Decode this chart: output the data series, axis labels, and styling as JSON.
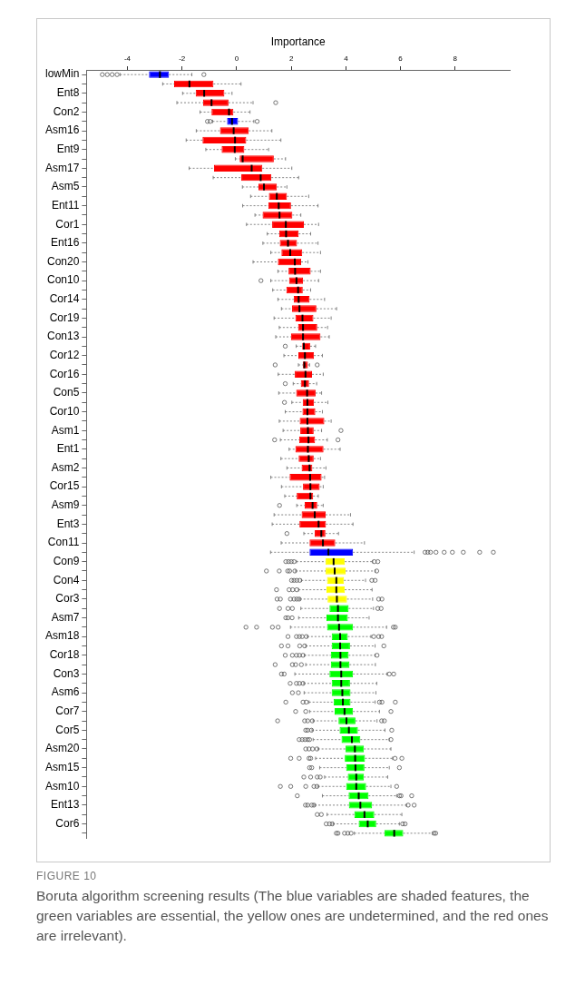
{
  "chart_data": {
    "type": "box",
    "orientation": "horizontal",
    "xlabel": "Importance",
    "xlim": [
      -5.5,
      10
    ],
    "xticks": [
      -4,
      -2,
      0,
      2,
      4,
      6,
      8
    ],
    "grid": false,
    "legend": false,
    "categories": [
      "lowMin",
      null,
      "Ent8",
      null,
      "Con2",
      null,
      "Asm16",
      null,
      "Ent9",
      null,
      "Asm17",
      null,
      "Asm5",
      null,
      "Ent11",
      null,
      "Cor1",
      null,
      "Ent16",
      null,
      "Con20",
      null,
      "Con10",
      null,
      "Cor14",
      null,
      "Cor19",
      null,
      "Con13",
      null,
      "Cor12",
      null,
      "Cor16",
      null,
      "Con5",
      null,
      "Cor10",
      null,
      "Asm1",
      null,
      "Ent1",
      null,
      "Asm2",
      null,
      "Cor15",
      null,
      "Asm9",
      null,
      "Ent3",
      null,
      "Con11",
      null,
      "Con9",
      null,
      "Con4",
      null,
      "Cor3",
      null,
      "Asm7",
      null,
      "Asm18",
      null,
      "Cor18",
      null,
      "Con3",
      null,
      "Asm6",
      null,
      "Cor7",
      null,
      "Cor5",
      null,
      "Asm20",
      null,
      "Asm15",
      null,
      "Asm10",
      null,
      "Ent13",
      null,
      "Cor6",
      null
    ],
    "colors": [
      "#0000ff",
      "#ff0000",
      "#ff0000",
      "#ff0000",
      "#ff0000",
      "#0000ff",
      "#ff0000",
      "#ff0000",
      "#ff0000",
      "#ff0000",
      "#ff0000",
      "#ff0000",
      "#ff0000",
      "#ff0000",
      "#ff0000",
      "#ff0000",
      "#ff0000",
      "#ff0000",
      "#ff0000",
      "#ff0000",
      "#ff0000",
      "#ff0000",
      "#ff0000",
      "#ff0000",
      "#ff0000",
      "#ff0000",
      "#ff0000",
      "#ff0000",
      "#ff0000",
      "#ff0000",
      "#ff0000",
      "#ff0000",
      "#ff0000",
      "#ff0000",
      "#ff0000",
      "#ff0000",
      "#ff0000",
      "#ff0000",
      "#ff0000",
      "#ff0000",
      "#ff0000",
      "#ff0000",
      "#ff0000",
      "#ff0000",
      "#ff0000",
      "#ff0000",
      "#ff0000",
      "#ff0000",
      "#ff0000",
      "#ff0000",
      "#ff0000",
      "#0000ff",
      "#ffff00",
      "#ffff00",
      "#ffff00",
      "#ffff00",
      "#ffff00",
      "#00ff00",
      "#00ff00",
      "#00ff00",
      "#00ff00",
      "#00ff00",
      "#00ff00",
      "#00ff00",
      "#00ff00",
      "#00ff00",
      "#00ff00",
      "#00ff00",
      "#00ff00",
      "#00ff00",
      "#00ff00",
      "#00ff00",
      "#00ff00",
      "#00ff00",
      "#00ff00",
      "#00ff00",
      "#00ff00",
      "#00ff00",
      "#00ff00",
      "#00ff00",
      "#00ff00",
      "#00ff00"
    ],
    "boxes": [
      {
        "low": -4.27,
        "q1": -3.21,
        "median": -2.81,
        "q3": -2.48,
        "high": -1.64,
        "outliers": [
          -4.92,
          -4.74,
          -4.56,
          -4.38,
          -1.2
        ]
      },
      {
        "low": -2.71,
        "q1": -2.29,
        "median": -1.73,
        "q3": -0.85,
        "high": 0.16
      },
      {
        "low": -1.98,
        "q1": -1.5,
        "median": -1.19,
        "q3": -0.45,
        "high": -0.17
      },
      {
        "low": -2.19,
        "q1": -1.23,
        "median": -0.92,
        "q3": -0.3,
        "high": 0.6,
        "outliers": [
          1.43
        ]
      },
      {
        "low": -1.34,
        "q1": -0.92,
        "median": -0.28,
        "q3": -0.12,
        "high": 0.49
      },
      {
        "low": -0.88,
        "q1": -0.35,
        "median": -0.17,
        "q3": 0.05,
        "high": 0.63,
        "outliers": [
          -1.07,
          -0.97,
          0.75
        ]
      },
      {
        "low": -1.48,
        "q1": -0.61,
        "median": -0.11,
        "q3": 0.44,
        "high": 1.29
      },
      {
        "low": -1.85,
        "q1": -1.25,
        "median": -0.06,
        "q3": 0.35,
        "high": 1.62
      },
      {
        "low": -1.13,
        "q1": -0.55,
        "median": -0.07,
        "q3": 0.28,
        "high": 1.17
      },
      {
        "low": -0.05,
        "q1": 0.11,
        "median": 0.22,
        "q3": 1.36,
        "high": 1.79
      },
      {
        "low": -1.74,
        "q1": -0.83,
        "median": 0.55,
        "q3": 0.94,
        "high": 2.02
      },
      {
        "low": -0.86,
        "q1": 0.17,
        "median": 0.88,
        "q3": 1.27,
        "high": 2.27
      },
      {
        "low": 0.21,
        "q1": 0.8,
        "median": 1.0,
        "q3": 1.47,
        "high": 1.84
      },
      {
        "low": 0.51,
        "q1": 1.18,
        "median": 1.47,
        "q3": 1.84,
        "high": 2.64
      },
      {
        "low": 0.22,
        "q1": 1.16,
        "median": 1.54,
        "q3": 1.99,
        "high": 2.98
      },
      {
        "low": 0.67,
        "q1": 0.95,
        "median": 1.57,
        "q3": 2.04,
        "high": 2.35
      },
      {
        "low": 0.36,
        "q1": 1.3,
        "median": 1.8,
        "q3": 2.46,
        "high": 3.0
      },
      {
        "low": 1.12,
        "q1": 1.56,
        "median": 1.81,
        "q3": 2.27,
        "high": 2.71
      },
      {
        "low": 0.96,
        "q1": 1.58,
        "median": 1.88,
        "q3": 2.21,
        "high": 2.98
      },
      {
        "low": 1.25,
        "q1": 1.64,
        "median": 1.96,
        "q3": 2.4,
        "high": 3.07
      },
      {
        "low": 0.6,
        "q1": 1.51,
        "median": 2.13,
        "q3": 2.36,
        "high": 2.61
      },
      {
        "low": 1.51,
        "q1": 1.9,
        "median": 2.14,
        "q3": 2.71,
        "high": 3.07
      },
      {
        "low": 1.25,
        "q1": 1.92,
        "median": 2.19,
        "q3": 2.43,
        "high": 3.0,
        "outliers": [
          0.89
        ]
      },
      {
        "low": 1.32,
        "q1": 1.82,
        "median": 2.25,
        "q3": 2.42,
        "high": 2.71
      },
      {
        "low": 1.51,
        "q1": 2.09,
        "median": 2.27,
        "q3": 2.67,
        "high": 3.22
      },
      {
        "low": 1.64,
        "q1": 2.03,
        "median": 2.3,
        "q3": 2.92,
        "high": 3.66
      },
      {
        "low": 1.37,
        "q1": 2.15,
        "median": 2.41,
        "q3": 2.81,
        "high": 3.46
      },
      {
        "low": 1.56,
        "q1": 2.25,
        "median": 2.43,
        "q3": 2.95,
        "high": 3.33
      },
      {
        "low": 1.43,
        "q1": 1.99,
        "median": 2.43,
        "q3": 3.07,
        "high": 3.39
      },
      {
        "low": 2.18,
        "q1": 2.4,
        "median": 2.46,
        "q3": 2.69,
        "high": 2.89,
        "outliers": [
          1.78
        ]
      },
      {
        "low": 1.73,
        "q1": 2.26,
        "median": 2.5,
        "q3": 2.83,
        "high": 3.14
      },
      {
        "low": 2.26,
        "q1": 2.42,
        "median": 2.48,
        "q3": 2.61,
        "high": 2.67,
        "outliers": [
          1.41,
          2.95
        ]
      },
      {
        "low": 1.52,
        "q1": 2.13,
        "median": 2.52,
        "q3": 2.76,
        "high": 3.17
      },
      {
        "low": 2.07,
        "q1": 2.35,
        "median": 2.5,
        "q3": 2.65,
        "high": 2.93,
        "outliers": [
          1.78
        ]
      },
      {
        "low": 1.54,
        "q1": 2.18,
        "median": 2.58,
        "q3": 2.89,
        "high": 3.11
      },
      {
        "low": 2.02,
        "q1": 2.42,
        "median": 2.59,
        "q3": 2.83,
        "high": 3.34,
        "outliers": [
          1.75
        ]
      },
      {
        "low": 1.78,
        "q1": 2.41,
        "median": 2.59,
        "q3": 2.88,
        "high": 3.14
      },
      {
        "low": 1.56,
        "q1": 2.31,
        "median": 2.59,
        "q3": 3.21,
        "high": 3.46
      },
      {
        "low": 1.7,
        "q1": 2.33,
        "median": 2.61,
        "q3": 2.82,
        "high": 3.11,
        "outliers": [
          3.82
        ]
      },
      {
        "low": 1.6,
        "q1": 2.29,
        "median": 2.63,
        "q3": 2.87,
        "high": 3.32,
        "outliers": [
          1.39,
          3.71
        ]
      },
      {
        "low": 1.92,
        "q1": 2.15,
        "median": 2.61,
        "q3": 3.18,
        "high": 3.79
      },
      {
        "low": 1.62,
        "q1": 2.27,
        "median": 2.64,
        "q3": 2.82,
        "high": 3.07
      },
      {
        "low": 1.84,
        "q1": 2.38,
        "median": 2.67,
        "q3": 2.77,
        "high": 3.27
      },
      {
        "low": 1.25,
        "q1": 1.94,
        "median": 2.69,
        "q3": 3.11,
        "high": 3.22
      },
      {
        "low": 1.64,
        "q1": 2.43,
        "median": 2.7,
        "q3": 3.04,
        "high": 3.17
      },
      {
        "low": 1.76,
        "q1": 2.2,
        "median": 2.7,
        "q3": 2.8,
        "high": 2.99
      },
      {
        "low": 2.2,
        "q1": 2.49,
        "median": 2.78,
        "q3": 2.95,
        "high": 3.17,
        "outliers": [
          1.57
        ]
      },
      {
        "low": 1.37,
        "q1": 2.38,
        "median": 2.86,
        "q3": 3.26,
        "high": 4.17
      },
      {
        "low": 1.3,
        "q1": 2.3,
        "median": 3.0,
        "q3": 3.27,
        "high": 4.26
      },
      {
        "low": 2.46,
        "q1": 2.86,
        "median": 3.1,
        "q3": 3.25,
        "high": 3.73,
        "outliers": [
          1.84
        ]
      },
      {
        "low": 1.63,
        "q1": 2.67,
        "median": 3.16,
        "q3": 3.61,
        "high": 4.68
      },
      {
        "low": 1.24,
        "q1": 2.67,
        "median": 3.36,
        "q3": 4.26,
        "high": 6.5,
        "outliers": [
          6.9,
          7.0,
          7.1,
          7.3,
          7.6,
          7.9,
          8.3,
          8.9,
          9.4
        ]
      },
      {
        "low": 2.19,
        "q1": 3.26,
        "median": 3.55,
        "q3": 3.96,
        "high": 4.98,
        "outliers": [
          1.8,
          1.9,
          2.0,
          2.1,
          5.04,
          5.17
        ]
      },
      {
        "low": 2.16,
        "q1": 3.26,
        "median": 3.59,
        "q3": 3.99,
        "high": 5.08,
        "outliers": [
          1.09,
          1.56,
          1.87,
          1.94,
          2.13,
          5.13
        ]
      },
      {
        "low": 2.37,
        "q1": 3.31,
        "median": 3.65,
        "q3": 3.93,
        "high": 4.72,
        "outliers": [
          2.01,
          2.1,
          2.2,
          2.31,
          4.95,
          5.07
        ]
      },
      {
        "low": 2.27,
        "q1": 3.29,
        "median": 3.65,
        "q3": 3.96,
        "high": 4.96,
        "outliers": [
          1.46,
          1.92,
          2.05,
          2.2
        ]
      },
      {
        "low": 2.32,
        "q1": 3.33,
        "median": 3.67,
        "q3": 4.04,
        "high": 4.98,
        "outliers": [
          1.48,
          1.6,
          1.97,
          2.1,
          2.2,
          2.29,
          5.2,
          5.32
        ]
      },
      {
        "low": 2.35,
        "q1": 3.4,
        "median": 3.71,
        "q3": 4.1,
        "high": 5.01,
        "outliers": [
          1.57,
          1.88,
          2.04,
          5.17,
          5.29
        ]
      },
      {
        "low": 2.27,
        "q1": 3.29,
        "median": 3.71,
        "q3": 4.07,
        "high": 4.85,
        "outliers": [
          1.8,
          1.88,
          2.03
        ]
      },
      {
        "low": 1.97,
        "q1": 3.31,
        "median": 3.75,
        "q3": 4.26,
        "high": 5.49,
        "outliers": [
          0.34,
          0.73,
          1.31,
          1.52,
          5.74,
          5.81
        ]
      },
      {
        "low": 2.59,
        "q1": 3.48,
        "median": 3.79,
        "q3": 4.07,
        "high": 4.92,
        "outliers": [
          1.88,
          2.19,
          2.3,
          2.4,
          2.55,
          5.02,
          5.2,
          5.31
        ]
      },
      {
        "low": 2.53,
        "q1": 3.48,
        "median": 3.79,
        "q3": 4.15,
        "high": 5.07,
        "outliers": [
          1.64,
          1.88,
          2.31,
          2.49,
          5.39
        ]
      },
      {
        "low": 2.48,
        "q1": 3.45,
        "median": 3.8,
        "q3": 4.1,
        "high": 5.07,
        "outliers": [
          1.78,
          2.04,
          2.19,
          2.3,
          2.43,
          5.14
        ]
      },
      {
        "low": 2.53,
        "q1": 3.45,
        "median": 3.8,
        "q3": 4.13,
        "high": 5.08,
        "outliers": [
          1.41,
          2.04,
          2.16,
          2.37
        ]
      },
      {
        "low": 2.13,
        "q1": 3.4,
        "median": 3.83,
        "q3": 4.26,
        "high": 5.51,
        "outliers": [
          1.64,
          1.74,
          5.59,
          5.75
        ]
      },
      {
        "low": 2.46,
        "q1": 3.48,
        "median": 3.83,
        "q3": 4.15,
        "high": 5.13,
        "outliers": [
          1.96,
          2.19,
          2.3,
          2.43
        ]
      },
      {
        "low": 2.47,
        "q1": 3.48,
        "median": 3.87,
        "q3": 4.17,
        "high": 5.1,
        "outliers": [
          2.04,
          2.26
        ]
      },
      {
        "low": 2.65,
        "q1": 3.55,
        "median": 3.89,
        "q3": 4.17,
        "high": 5.07,
        "outliers": [
          1.8,
          2.43,
          2.55,
          5.23,
          5.32,
          5.81
        ]
      },
      {
        "low": 2.67,
        "q1": 3.59,
        "median": 3.95,
        "q3": 4.26,
        "high": 5.23,
        "outliers": [
          2.16,
          2.53,
          5.65
        ]
      },
      {
        "low": 2.8,
        "q1": 3.73,
        "median": 4.02,
        "q3": 4.35,
        "high": 5.14,
        "outliers": [
          1.5,
          2.49,
          2.6,
          2.77,
          5.31,
          5.41
        ]
      },
      {
        "low": 2.76,
        "q1": 3.77,
        "median": 4.11,
        "q3": 4.44,
        "high": 5.43,
        "outliers": [
          2.53,
          2.6,
          2.74,
          5.68
        ]
      },
      {
        "low": 2.8,
        "q1": 3.84,
        "median": 4.22,
        "q3": 4.53,
        "high": 5.59,
        "outliers": [
          2.29,
          2.4,
          2.5,
          2.6,
          2.67,
          5.65
        ]
      },
      {
        "low": 2.98,
        "q1": 3.99,
        "median": 4.33,
        "q3": 4.66,
        "high": 5.65,
        "outliers": [
          2.53,
          2.65,
          2.78,
          2.94
        ]
      },
      {
        "low": 2.89,
        "q1": 3.96,
        "median": 4.34,
        "q3": 4.7,
        "high": 5.71,
        "outliers": [
          1.98,
          2.29,
          2.65,
          2.71,
          5.8,
          6.05
        ]
      },
      {
        "low": 3.04,
        "q1": 4.01,
        "median": 4.35,
        "q3": 4.68,
        "high": 5.59,
        "outliers": [
          2.67,
          2.75,
          5.96
        ]
      },
      {
        "low": 3.22,
        "q1": 4.07,
        "median": 4.38,
        "q3": 4.66,
        "high": 5.53,
        "outliers": [
          2.46,
          2.71,
          2.95,
          3.06
        ]
      },
      {
        "low": 2.98,
        "q1": 4.01,
        "median": 4.38,
        "q3": 4.74,
        "high": 5.65,
        "outliers": [
          1.6,
          1.98,
          2.53,
          2.83,
          2.94,
          5.86
        ]
      },
      {
        "low": 3.14,
        "q1": 4.1,
        "median": 4.47,
        "q3": 4.83,
        "high": 5.86,
        "outliers": [
          2.22,
          5.96,
          6.02,
          6.41
        ]
      },
      {
        "low": 2.86,
        "q1": 4.11,
        "median": 4.53,
        "q3": 4.96,
        "high": 6.22,
        "outliers": [
          2.52,
          2.6,
          2.75,
          2.83,
          6.28,
          6.5
        ]
      },
      {
        "low": 3.31,
        "q1": 4.31,
        "median": 4.68,
        "q3": 5.04,
        "high": 6.05,
        "outliers": [
          2.95,
          3.1
        ]
      },
      {
        "low": 3.53,
        "q1": 4.47,
        "median": 4.8,
        "q3": 5.11,
        "high": 5.96,
        "outliers": [
          3.28,
          3.4,
          3.5,
          6.08,
          6.17
        ]
      },
      {
        "low": 4.31,
        "q1": 5.41,
        "median": 5.77,
        "q3": 6.1,
        "high": 7.17,
        "outliers": [
          3.65,
          3.71,
          3.95,
          4.07,
          4.19,
          7.23,
          7.29
        ]
      }
    ],
    "annotations": [
      "FIGURE 10",
      "Boruta algorithm screening results (The blue variables are shaded features, the green variables are essential, the yellow ones are undetermined, and the red ones are irrelevant)."
    ]
  }
}
